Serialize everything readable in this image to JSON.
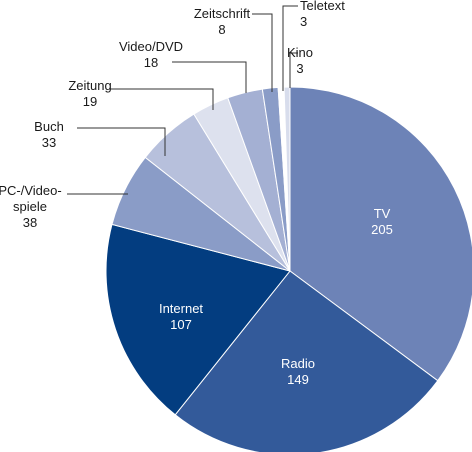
{
  "chart_data": {
    "type": "pie",
    "title": "",
    "start_angle_deg": 0,
    "direction": "clockwise",
    "slices": [
      {
        "label": "TV",
        "value": 205,
        "color": "#6d83b7"
      },
      {
        "label": "Radio",
        "value": 149,
        "color": "#335a9a"
      },
      {
        "label": "Internet",
        "value": 107,
        "color": "#033d80"
      },
      {
        "label": "PC-/Video-\nspiele",
        "value": 38,
        "color": "#8a9cc7"
      },
      {
        "label": "Buch",
        "value": 33,
        "color": "#b7c0dc"
      },
      {
        "label": "Zeitung",
        "value": 19,
        "color": "#dde1ee"
      },
      {
        "label": "Video/DVD",
        "value": 18,
        "color": "#a4b0d3"
      },
      {
        "label": "Zeitschrift",
        "value": 8,
        "color": "#8a9cc7"
      },
      {
        "label": "Teletext",
        "value": 3,
        "color": "#ffffff"
      },
      {
        "label": "Kino",
        "value": 3,
        "color": "#d8ddec"
      }
    ]
  }
}
